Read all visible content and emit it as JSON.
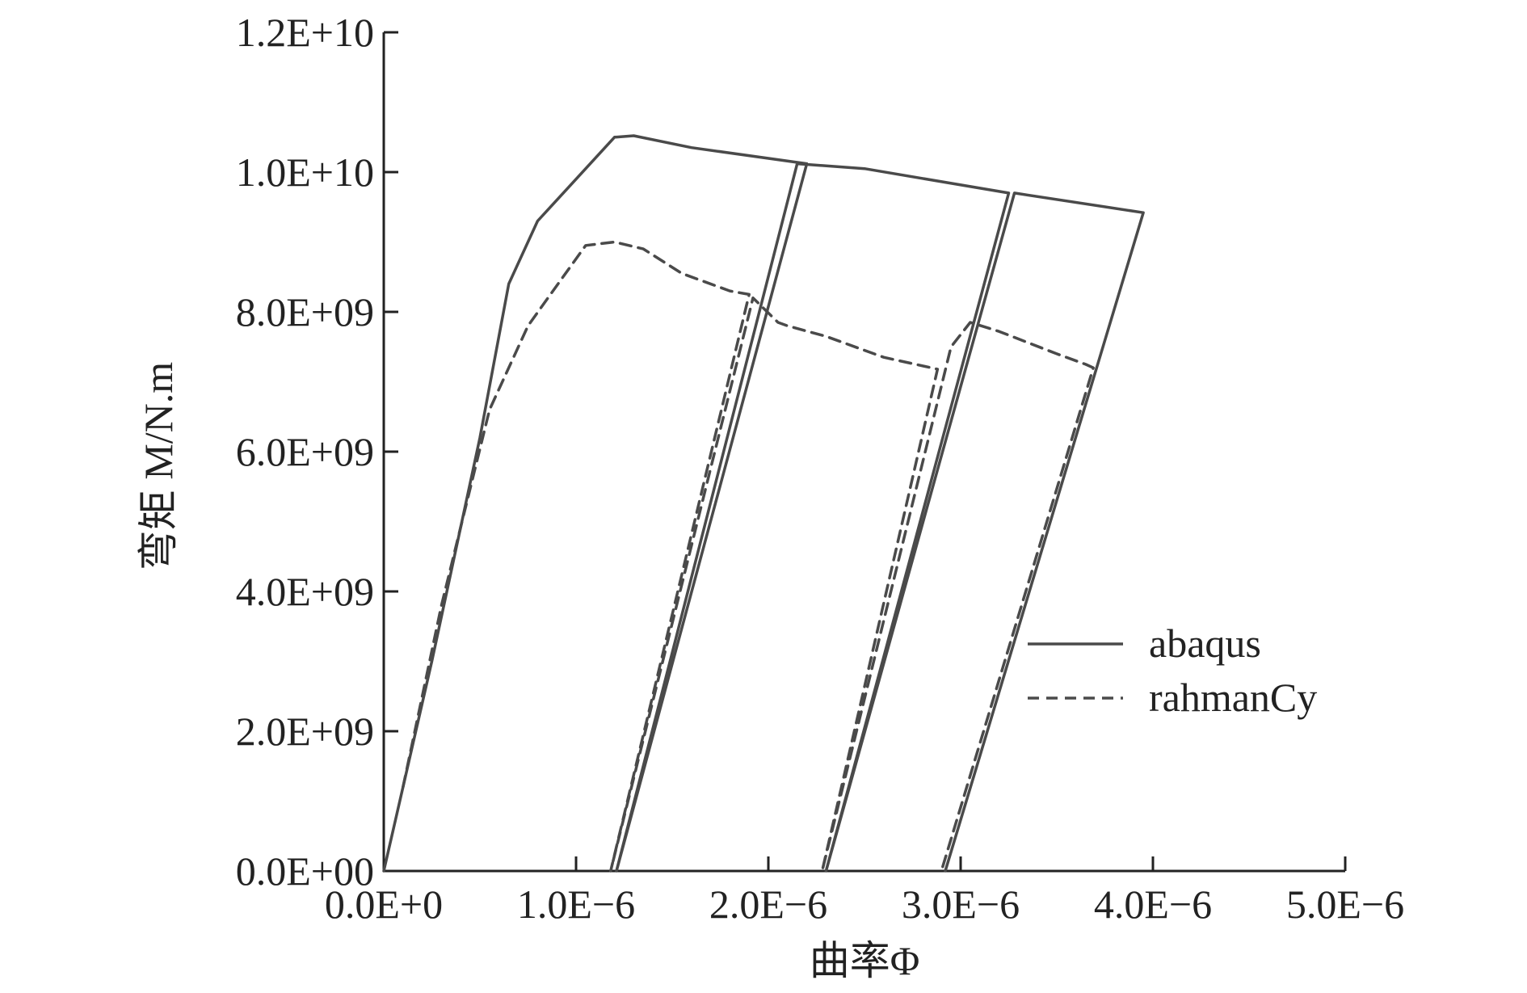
{
  "chart_data": {
    "type": "line",
    "title": "",
    "xlabel": "曲率Φ",
    "ylabel": "弯矩 M/N.m",
    "xlim": [
      0,
      5e-06
    ],
    "ylim": [
      0,
      12000000000
    ],
    "x_ticks": [
      0,
      1e-06,
      2e-06,
      3e-06,
      4e-06,
      5e-06
    ],
    "x_tick_labels": [
      "0.0E+0",
      "1.0E−6",
      "2.0E−6",
      "3.0E−6",
      "4.0E−6",
      "5.0E−6"
    ],
    "y_ticks": [
      0,
      2000000000,
      4000000000,
      6000000000,
      8000000000,
      10000000000,
      12000000000
    ],
    "y_tick_labels": [
      "0.0E+00",
      "2.0E+09",
      "4.0E+09",
      "6.0E+09",
      "8.0E+09",
      "1.0E+10",
      "1.2E+10"
    ],
    "grid": false,
    "legend": "right",
    "series": [
      {
        "name": "abaqus",
        "style": "solid",
        "color": "#4a4a4a",
        "points": [
          [
            0,
            0
          ],
          [
            2.5e-07,
            3000000000.0
          ],
          [
            5e-07,
            6200000000.0
          ],
          [
            6.5e-07,
            8400000000.0
          ],
          [
            8e-07,
            9300000000.0
          ],
          [
            1e-06,
            9900000000.0
          ],
          [
            1.2e-06,
            10500000000.0
          ],
          [
            1.3e-06,
            10520000000.0
          ],
          [
            1.6e-06,
            10350000000.0
          ],
          [
            2.2e-06,
            10120000000.0
          ],
          [
            1.21e-06,
            0
          ],
          [
            2.15e-06,
            10120000000.0
          ],
          [
            2.5e-06,
            10050000000.0
          ],
          [
            3.25e-06,
            9700000000.0
          ],
          [
            2.3e-06,
            0
          ],
          [
            3.28e-06,
            9700000000.0
          ],
          [
            3.95e-06,
            9420000000.0
          ],
          [
            2.92e-06,
            0
          ]
        ]
      },
      {
        "name": "rahmanCy",
        "style": "dashed",
        "color": "#4a4a4a",
        "points": [
          [
            1e-07,
            1200000000.0
          ],
          [
            3e-07,
            3800000000.0
          ],
          [
            5.5e-07,
            6600000000.0
          ],
          [
            7.5e-07,
            7800000000.0
          ],
          [
            8.8e-07,
            8300000000.0
          ],
          [
            1.05e-06,
            8950000000.0
          ],
          [
            1.2e-06,
            9000000000.0
          ],
          [
            1.35e-06,
            8900000000.0
          ],
          [
            1.55e-06,
            8550000000.0
          ],
          [
            1.8e-06,
            8300000000.0
          ],
          [
            1.9e-06,
            8250000000.0
          ],
          [
            1.18e-06,
            0
          ],
          [
            1.92e-06,
            8200000000.0
          ],
          [
            2.05e-06,
            7850000000.0
          ],
          [
            2.1e-06,
            7800000000.0
          ],
          [
            2.3e-06,
            7650000000.0
          ],
          [
            2.6e-06,
            7350000000.0
          ],
          [
            2.88e-06,
            7180000000.0
          ],
          [
            2.28e-06,
            0
          ],
          [
            2.95e-06,
            7500000000.0
          ],
          [
            3.05e-06,
            7850000000.0
          ],
          [
            3.2e-06,
            7720000000.0
          ],
          [
            3.5e-06,
            7400000000.0
          ],
          [
            3.65e-06,
            7250000000.0
          ],
          [
            3.69e-06,
            7200000000.0
          ],
          [
            2.9e-06,
            0
          ]
        ]
      }
    ]
  }
}
